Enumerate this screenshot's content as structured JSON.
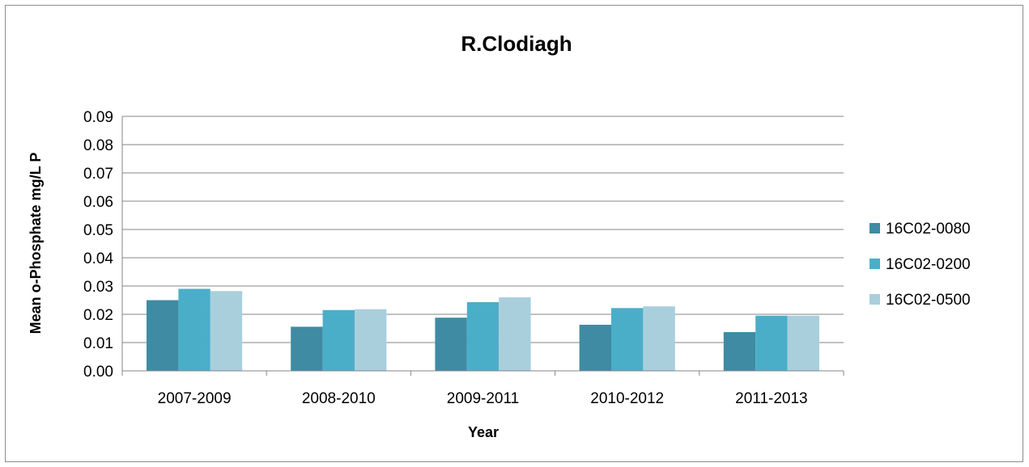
{
  "chart_data": {
    "type": "bar",
    "title": "R.Clodiagh",
    "xlabel": "Year",
    "ylabel": "Mean o-Phosphate mg/L P",
    "categories": [
      "2007-2009",
      "2008-2010",
      "2009-2011",
      "2010-2012",
      "2011-2013"
    ],
    "series": [
      {
        "name": "16C02-0080",
        "color": "#3E8BA3",
        "values": [
          0.025,
          0.0156,
          0.0188,
          0.0163,
          0.0137
        ]
      },
      {
        "name": "16C02-0200",
        "color": "#4BAEC8",
        "values": [
          0.029,
          0.0215,
          0.0243,
          0.0222,
          0.0195
        ]
      },
      {
        "name": "16C02-0500",
        "color": "#A9CFDD",
        "values": [
          0.0282,
          0.0218,
          0.026,
          0.0228,
          0.0195
        ]
      }
    ],
    "ylim": [
      0,
      0.09
    ],
    "yticks": [
      "0.00",
      "0.01",
      "0.02",
      "0.03",
      "0.04",
      "0.05",
      "0.06",
      "0.07",
      "0.08",
      "0.09"
    ],
    "grid": true,
    "legend_position": "right",
    "gridline_color": "#868686"
  }
}
